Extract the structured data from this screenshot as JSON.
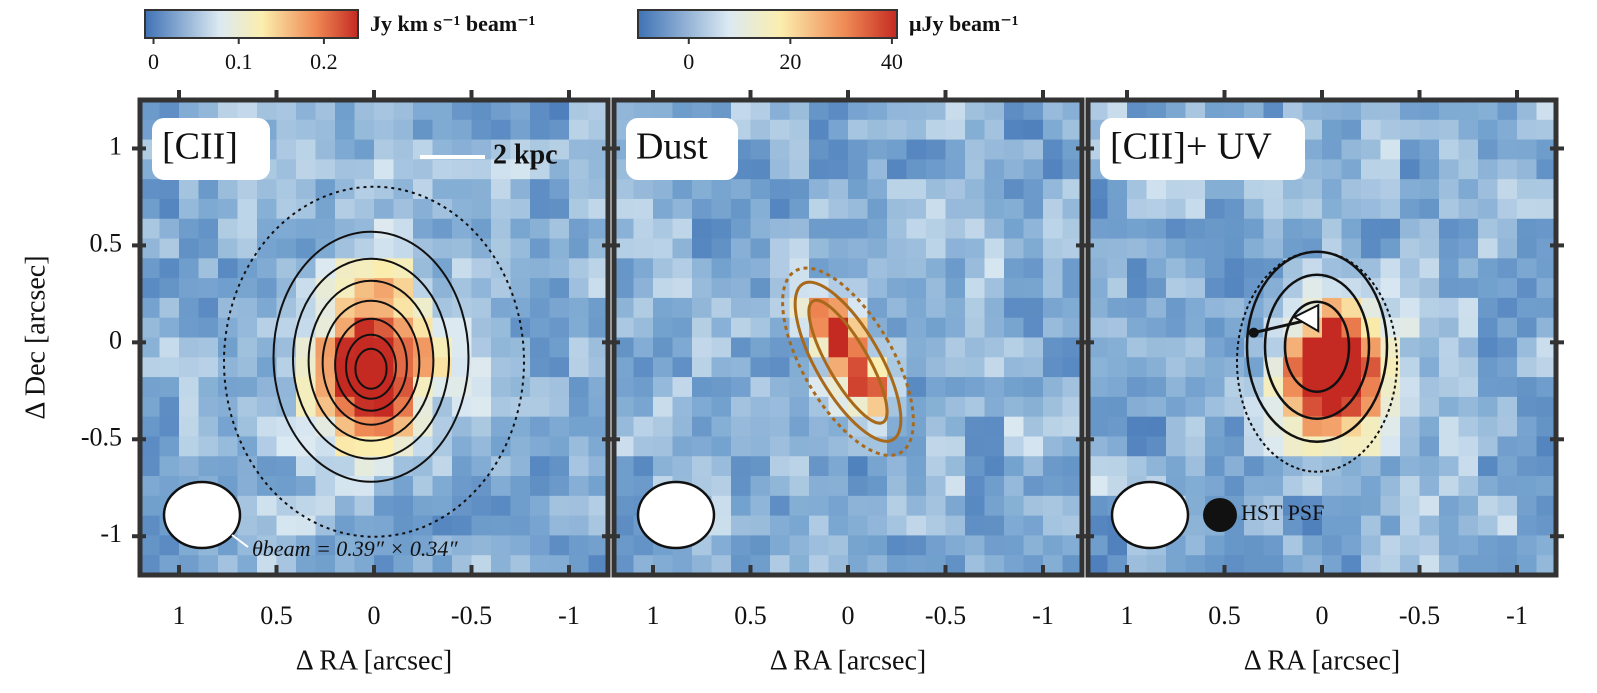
{
  "colorbars": [
    {
      "clim": [
        -0.01,
        0.24
      ],
      "ticks": [
        0,
        0.1,
        0.2
      ],
      "label": "Jy km s⁻¹ beam⁻¹"
    },
    {
      "clim": [
        -10,
        41
      ],
      "ticks": [
        0,
        20,
        40
      ],
      "label": "μJy beam⁻¹"
    }
  ],
  "chart_data": [
    {
      "type": "image",
      "label": "[CII]",
      "xlabel": "Δ RA [arcsec]",
      "ylabel": "Δ Dec [arcsec]",
      "scale_bar": "2 kpc",
      "beam_label": "θbeam = 0.39″ × 0.34″",
      "xlim": [
        1.2,
        -1.2
      ],
      "ylim": [
        -1.2,
        1.25
      ],
      "xticks": [
        1,
        0.5,
        0,
        -0.5,
        -1
      ],
      "yticks": [
        1,
        0.5,
        0,
        -0.5,
        -1
      ]
    },
    {
      "type": "image",
      "label": "Dust",
      "xlabel": "Δ RA [arcsec]",
      "xlim": [
        1.2,
        -1.2
      ],
      "ylim": [
        -1.2,
        1.25
      ],
      "xticks": [
        1,
        0.5,
        0,
        -0.5,
        -1
      ],
      "yticks": [
        1,
        0.5,
        0,
        -0.5,
        -1
      ]
    },
    {
      "type": "image",
      "label": "[CII]+ UV",
      "xlabel": "Δ RA [arcsec]",
      "psf_label": "HST PSF",
      "xlim": [
        1.2,
        -1.2
      ],
      "ylim": [
        -1.2,
        1.25
      ],
      "xticks": [
        1,
        0.5,
        0,
        -0.5,
        -1
      ],
      "yticks": [
        1,
        0.5,
        0,
        -0.5,
        -1
      ]
    }
  ]
}
